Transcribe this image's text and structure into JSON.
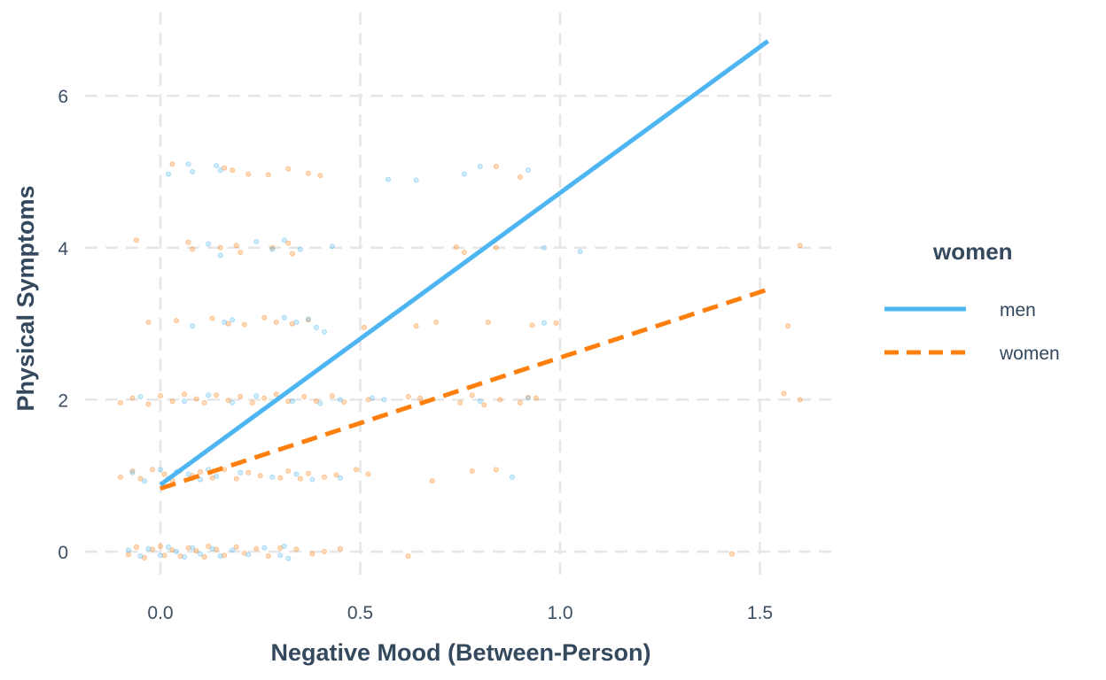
{
  "chart_data": {
    "type": "scatter",
    "xlabel": "Negative Mood (Between-Person)",
    "ylabel": "Physical Symptoms",
    "xlim": [
      -0.18,
      1.68
    ],
    "ylim": [
      -0.6,
      6.9
    ],
    "x_ticks": [
      0.0,
      0.5,
      1.0,
      1.5
    ],
    "x_tick_labels": [
      "0.0",
      "0.5",
      "1.0",
      "1.5"
    ],
    "y_ticks": [
      0,
      2,
      4,
      6
    ],
    "y_tick_labels": [
      "0",
      "2",
      "4",
      "6"
    ],
    "grid": true,
    "legend": {
      "title": "women",
      "placement": "right",
      "entries": [
        {
          "label": "men",
          "color": "#4db6f2",
          "dash": "solid"
        },
        {
          "label": "women",
          "color": "#ff7f0e",
          "dash": "dashed"
        }
      ]
    },
    "series": [
      {
        "name": "men",
        "color": "#4db6f2",
        "line": {
          "x": [
            0.0,
            1.52
          ],
          "y": [
            0.88,
            6.72
          ]
        },
        "points": [
          [
            -0.08,
            0.02
          ],
          [
            -0.05,
            -0.06
          ],
          [
            -0.03,
            0.04
          ],
          [
            0.0,
            -0.05
          ],
          [
            0.02,
            0.06
          ],
          [
            0.04,
            0.0
          ],
          [
            0.06,
            -0.07
          ],
          [
            0.08,
            0.05
          ],
          [
            0.1,
            -0.03
          ],
          [
            0.13,
            0.04
          ],
          [
            0.15,
            -0.06
          ],
          [
            0.18,
            0.02
          ],
          [
            0.22,
            -0.04
          ],
          [
            0.26,
            0.05
          ],
          [
            0.3,
            -0.05
          ],
          [
            0.31,
            0.07
          ],
          [
            0.32,
            -0.09
          ],
          [
            -0.07,
            1.04
          ],
          [
            -0.04,
            0.93
          ],
          [
            0.0,
            1.08
          ],
          [
            0.02,
            0.96
          ],
          [
            0.04,
            1.05
          ],
          [
            0.07,
            1.02
          ],
          [
            0.1,
            0.95
          ],
          [
            0.12,
            1.08
          ],
          [
            0.14,
            0.99
          ],
          [
            0.2,
            1.04
          ],
          [
            0.28,
            0.98
          ],
          [
            0.34,
            1.02
          ],
          [
            0.38,
            0.95
          ],
          [
            0.45,
            0.97
          ],
          [
            0.88,
            0.98
          ],
          [
            -0.05,
            2.04
          ],
          [
            0.06,
            1.98
          ],
          [
            0.12,
            2.06
          ],
          [
            0.18,
            1.96
          ],
          [
            0.24,
            2.05
          ],
          [
            0.33,
            1.98
          ],
          [
            0.4,
            1.95
          ],
          [
            0.45,
            2.0
          ],
          [
            0.53,
            2.02
          ],
          [
            0.56,
            2.0
          ],
          [
            0.8,
            1.98
          ],
          [
            0.92,
            2.02
          ],
          [
            0.08,
            2.97
          ],
          [
            0.16,
            3.02
          ],
          [
            0.18,
            3.05
          ],
          [
            0.31,
            3.08
          ],
          [
            0.34,
            3.02
          ],
          [
            0.37,
            3.06
          ],
          [
            0.39,
            2.95
          ],
          [
            0.41,
            2.89
          ],
          [
            0.96,
            3.01
          ],
          [
            0.12,
            4.05
          ],
          [
            0.15,
            3.9
          ],
          [
            0.24,
            4.08
          ],
          [
            0.28,
            3.98
          ],
          [
            0.31,
            4.1
          ],
          [
            0.35,
            3.98
          ],
          [
            0.43,
            4.02
          ],
          [
            0.96,
            4.0
          ],
          [
            1.05,
            3.95
          ],
          [
            0.02,
            4.97
          ],
          [
            0.07,
            5.1
          ],
          [
            0.08,
            5.0
          ],
          [
            0.14,
            5.08
          ],
          [
            0.15,
            5.02
          ],
          [
            0.57,
            4.9
          ],
          [
            0.64,
            4.89
          ],
          [
            0.76,
            4.97
          ],
          [
            0.8,
            5.07
          ],
          [
            0.92,
            5.02
          ]
        ]
      },
      {
        "name": "women",
        "color": "#ff7f0e",
        "line": {
          "x": [
            0.0,
            1.52
          ],
          "y": [
            0.83,
            3.45
          ]
        },
        "points": [
          [
            -0.08,
            -0.04
          ],
          [
            -0.06,
            0.06
          ],
          [
            -0.04,
            -0.08
          ],
          [
            -0.02,
            0.03
          ],
          [
            0.0,
            0.07
          ],
          [
            0.01,
            -0.05
          ],
          [
            0.03,
            0.02
          ],
          [
            0.05,
            -0.06
          ],
          [
            0.07,
            0.05
          ],
          [
            0.09,
            0.01
          ],
          [
            0.11,
            -0.07
          ],
          [
            0.12,
            0.07
          ],
          [
            0.14,
            0.03
          ],
          [
            0.16,
            -0.05
          ],
          [
            0.19,
            0.06
          ],
          [
            0.21,
            -0.02
          ],
          [
            0.24,
            0.04
          ],
          [
            0.27,
            -0.06
          ],
          [
            0.3,
            0.05
          ],
          [
            0.34,
            0.03
          ],
          [
            0.38,
            -0.03
          ],
          [
            0.41,
            0.0
          ],
          [
            0.45,
            0.04
          ],
          [
            0.62,
            -0.06
          ],
          [
            1.43,
            -0.03
          ],
          [
            -0.1,
            0.98
          ],
          [
            -0.07,
            1.06
          ],
          [
            -0.05,
            0.96
          ],
          [
            -0.02,
            1.08
          ],
          [
            0.01,
            1.02
          ],
          [
            0.03,
            0.94
          ],
          [
            0.05,
            1.07
          ],
          [
            0.08,
            1.0
          ],
          [
            0.1,
            1.05
          ],
          [
            0.13,
            0.97
          ],
          [
            0.16,
            1.08
          ],
          [
            0.19,
            0.96
          ],
          [
            0.22,
            1.04
          ],
          [
            0.25,
            1.0
          ],
          [
            0.3,
            0.97
          ],
          [
            0.32,
            1.06
          ],
          [
            0.35,
            0.96
          ],
          [
            0.37,
            1.03
          ],
          [
            0.41,
            0.98
          ],
          [
            0.44,
            1.01
          ],
          [
            0.49,
            1.08
          ],
          [
            0.52,
            1.02
          ],
          [
            0.68,
            0.93
          ],
          [
            0.78,
            1.06
          ],
          [
            0.84,
            1.08
          ],
          [
            -0.1,
            1.96
          ],
          [
            -0.07,
            2.02
          ],
          [
            -0.03,
            1.94
          ],
          [
            0.0,
            2.05
          ],
          [
            0.03,
            1.98
          ],
          [
            0.06,
            2.07
          ],
          [
            0.09,
            2.01
          ],
          [
            0.11,
            1.96
          ],
          [
            0.14,
            2.06
          ],
          [
            0.17,
            1.99
          ],
          [
            0.2,
            2.04
          ],
          [
            0.23,
            1.96
          ],
          [
            0.26,
            2.02
          ],
          [
            0.29,
            2.07
          ],
          [
            0.32,
            1.98
          ],
          [
            0.36,
            2.04
          ],
          [
            0.39,
            1.98
          ],
          [
            0.43,
            2.05
          ],
          [
            0.46,
            1.97
          ],
          [
            0.52,
            2.0
          ],
          [
            0.62,
            2.04
          ],
          [
            0.65,
            2.02
          ],
          [
            0.75,
            1.96
          ],
          [
            0.78,
            2.06
          ],
          [
            0.81,
            1.93
          ],
          [
            0.85,
            2.0
          ],
          [
            0.9,
            1.96
          ],
          [
            0.92,
            2.03
          ],
          [
            0.94,
            2.02
          ],
          [
            1.56,
            2.08
          ],
          [
            1.6,
            2.0
          ],
          [
            -0.03,
            3.02
          ],
          [
            0.04,
            3.04
          ],
          [
            0.13,
            3.07
          ],
          [
            0.17,
            3.0
          ],
          [
            0.21,
            2.99
          ],
          [
            0.26,
            3.08
          ],
          [
            0.29,
            3.02
          ],
          [
            0.33,
            3.0
          ],
          [
            0.37,
            3.05
          ],
          [
            0.51,
            2.95
          ],
          [
            0.64,
            2.97
          ],
          [
            0.69,
            3.02
          ],
          [
            0.82,
            3.02
          ],
          [
            0.93,
            2.98
          ],
          [
            0.99,
            3.01
          ],
          [
            1.57,
            2.97
          ],
          [
            -0.06,
            4.1
          ],
          [
            0.07,
            4.07
          ],
          [
            0.08,
            3.98
          ],
          [
            0.15,
            4.0
          ],
          [
            0.19,
            4.03
          ],
          [
            0.2,
            3.94
          ],
          [
            0.28,
            4.0
          ],
          [
            0.32,
            4.06
          ],
          [
            0.33,
            3.92
          ],
          [
            0.74,
            4.01
          ],
          [
            0.76,
            3.94
          ],
          [
            0.84,
            4.0
          ],
          [
            1.6,
            4.03
          ]
        ]
      },
      {
        "name": "women_upper",
        "color": "#ff7f0e",
        "points": [
          [
            0.03,
            5.1
          ],
          [
            0.16,
            5.05
          ],
          [
            0.18,
            5.02
          ],
          [
            0.22,
            4.97
          ],
          [
            0.27,
            4.96
          ],
          [
            0.32,
            5.04
          ],
          [
            0.37,
            4.98
          ],
          [
            0.4,
            4.95
          ],
          [
            0.84,
            5.07
          ],
          [
            0.9,
            4.93
          ]
        ]
      }
    ]
  }
}
